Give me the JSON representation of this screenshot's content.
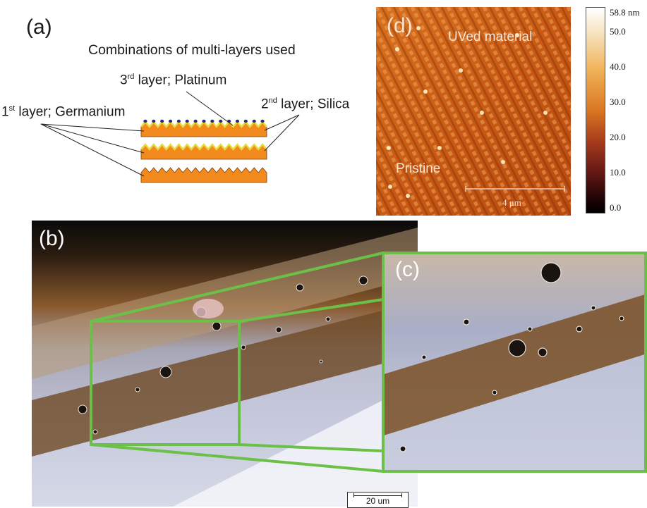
{
  "panel_a": {
    "label": "(a)",
    "title": "Combinations of multi-layers used",
    "layer3_prefix": "3",
    "layer3_sup": "rd",
    "layer3_text": " layer; Platinum",
    "layer2_prefix": "2",
    "layer2_sup": "nd",
    "layer2_text": " layer; Silica",
    "layer1_prefix": "1",
    "layer1_sup": "st",
    "layer1_text": " layer; Germanium",
    "colors": {
      "germanium": "#f28a1e",
      "silica": "#e8dc3a",
      "platinum": "#2a2a6e"
    }
  },
  "panel_d": {
    "label": "(d)",
    "region_top": "UVed material",
    "region_bottom": "Pristine",
    "scale_bar": "4 μm",
    "colorbar_ticks": [
      "58.8 nm",
      "50.0",
      "40.0",
      "30.0",
      "20.0",
      "10.0",
      "0.0"
    ]
  },
  "panel_b": {
    "label": "(b)",
    "scale_bar": "20 um",
    "box_color": "#6cc04a"
  },
  "panel_c": {
    "label": "(c)"
  }
}
